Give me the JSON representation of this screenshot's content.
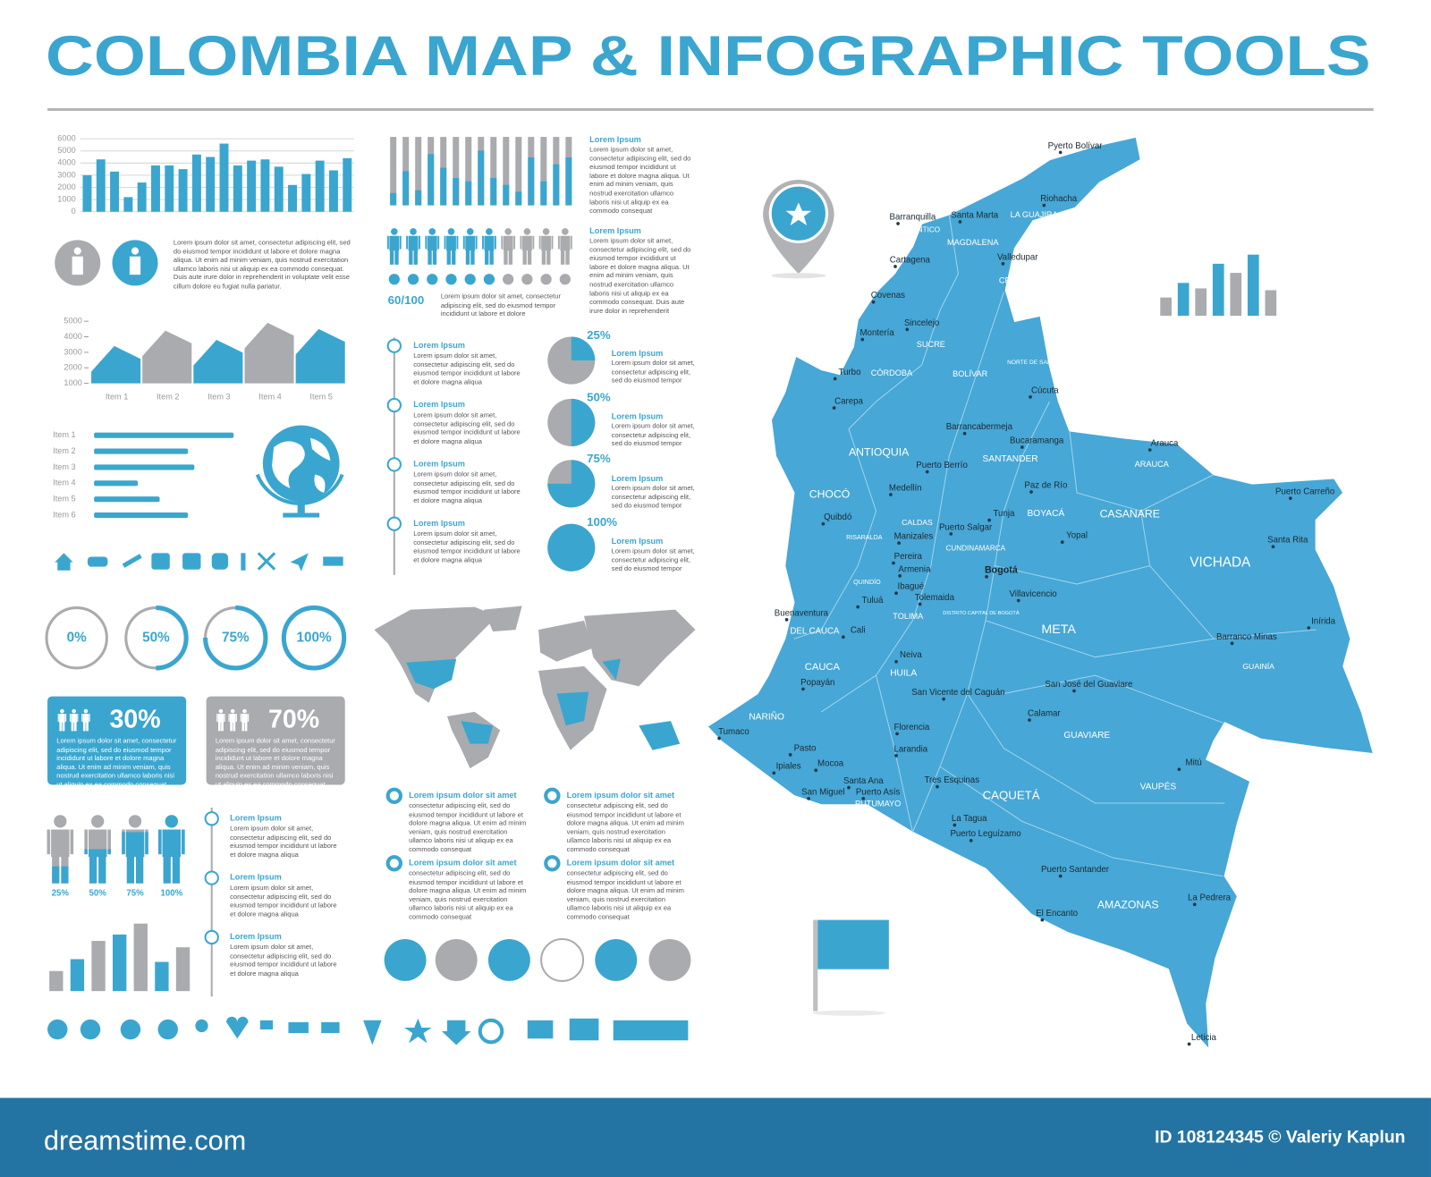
{
  "header": {
    "title": "COLOMBIA MAP & INFOGRAPHIC TOOLS"
  },
  "chart_data": [
    {
      "type": "bar",
      "ylim": [
        0,
        6000
      ],
      "yticks": [
        0,
        1000,
        2000,
        3000,
        4000,
        5000,
        6000
      ],
      "grid": true,
      "series": [
        {
          "color": "#3aa6cf",
          "values": [
            3000,
            3300,
            2400,
            3800,
            4700,
            5600,
            4200,
            3700,
            3100,
            3400
          ]
        },
        {
          "color": "#3aa6cf",
          "values": [
            4300,
            1200,
            3800,
            3500,
            4500,
            3800,
            4300,
            2200,
            4200,
            4400
          ]
        }
      ]
    },
    {
      "type": "area",
      "categories": [
        "Item 1",
        "Item 2",
        "Item 3",
        "Item 4",
        "Item 5"
      ],
      "values": [
        3400,
        4400,
        3800,
        4900,
        4500
      ],
      "colors": [
        "#3aa6cf",
        "#a9abae"
      ],
      "ylim": [
        1000,
        5000
      ],
      "yticks": [
        1000,
        2000,
        3000,
        4000,
        5000
      ]
    },
    {
      "type": "hbar",
      "categories": [
        "Item 1",
        "Item 2",
        "Item 3",
        "Item 4",
        "Item 5",
        "Item 6"
      ],
      "values": [
        153,
        103,
        110,
        48,
        72,
        103
      ],
      "color": "#3aa6cf"
    },
    {
      "type": "donut",
      "values": [
        0,
        50,
        75,
        100
      ],
      "value_labels": [
        "0%",
        "50%",
        "75%",
        "100%"
      ],
      "color": "#3aa6cf",
      "track_color": "#a9abae"
    },
    {
      "type": "pie",
      "values": [
        25,
        50,
        75,
        100
      ],
      "value_labels": [
        "25%",
        "50%",
        "75%",
        "100%"
      ],
      "color": "#3aa6cf",
      "track_color": "#a9abae"
    },
    {
      "type": "bar",
      "values": [
        18,
        50,
        22,
        75,
        55,
        40,
        35,
        80,
        40,
        30,
        20,
        70,
        35,
        60,
        70
      ],
      "colors": [
        "#3aa6cf"
      ],
      "track_color": "#a9abae"
    },
    {
      "type": "bar",
      "values": [
        22,
        35,
        55,
        62,
        74,
        32,
        48
      ],
      "colors": [
        "#a9abae",
        "#3aa6cf"
      ]
    },
    {
      "type": "bar",
      "values": [
        20,
        36,
        30,
        57,
        47,
        67,
        28
      ],
      "colors": [
        "#a9abae",
        "#3aa6cf"
      ]
    },
    {
      "type": "pictogram",
      "values": [
        25,
        50,
        75,
        100
      ],
      "value_labels": [
        "25%",
        "50%",
        "75%",
        "100%"
      ],
      "color": "#3aa6cf",
      "track_color": "#a9abae"
    },
    {
      "type": "count",
      "values": [
        60
      ],
      "total": 100,
      "value_labels": [
        "60/100"
      ],
      "color": "#3aa6cf",
      "track_color": "#a9abae"
    },
    {
      "type": "share",
      "values": [
        30,
        70
      ],
      "value_labels": [
        "30%",
        "70%"
      ],
      "colors": [
        "#3aa6cf",
        "#a9abae"
      ]
    }
  ],
  "notes": {
    "person": "Lorem ipsum dolor sit amet, consectetur adipiscing elit, sed do eiusmod tempor incididunt ut labore et dolore magna aliqua. Ut enim ad minim veniam, quis nostrud exercitation ullamco laboris nisi ut aliquip ex ea commodo consequat. Duis aute irure dolor in reprehenderit in voluptate velit esse cillum dolore eu fugiat nulla pariatur.",
    "bars": {
      "title": "Lorem Ipsum",
      "text": "Lorem ipsum dolor sit amet, consectetur adipiscing elit, sed do eiusmod tempor incididunt ut labore et dolore magna aliqua. Ut enim ad minim veniam, quis nostrud exercitation ullamco laboris nisi ut aliquip ex ea commodo consequat"
    },
    "people": {
      "title": "Lorem Ipsum",
      "text": "Lorem ipsum dolor sit amet, consectetur adipiscing elit, sed do eiusmod tempor incididunt ut labore et dolore magna aliqua. Ut enim ad minim veniam, quis nostrud exercitation ullamco laboris nisi ut aliquip ex ea commodo consequat. Duis aute irure dolor in reprehenderit"
    },
    "count": "Lorem ipsum dolor sit amet, consectetur adipiscing elit, sed do eiusmod tempor incididunt ut labore et dolore",
    "timeline_mid": [
      {
        "title": "Lorem Ipsum",
        "text": "Lorem ipsum dolor sit amet, consectetur adipiscing elit, sed do eiusmod tempor incididunt ut labore et dolore magna aliqua"
      },
      {
        "title": "Lorem Ipsum",
        "text": "Lorem ipsum dolor sit amet, consectetur adipiscing elit, sed do eiusmod tempor incididunt ut labore et dolore magna aliqua"
      },
      {
        "title": "Lorem Ipsum",
        "text": "Lorem ipsum dolor sit amet, consectetur adipiscing elit, sed do eiusmod tempor incididunt ut labore et dolore magna aliqua"
      },
      {
        "title": "Lorem Ipsum",
        "text": "Lorem ipsum dolor sit amet, consectetur adipiscing elit, sed do eiusmod tempor incididunt ut labore et dolore magna aliqua"
      }
    ],
    "pies": [
      {
        "title": "Lorem Ipsum",
        "text": "Lorem ipsum dolor sit amet, consectetur adipiscing elit, sed do eiusmod tempor"
      },
      {
        "title": "Lorem Ipsum",
        "text": "Lorem ipsum dolor sit amet, consectetur adipiscing elit, sed do eiusmod tempor"
      },
      {
        "title": "Lorem Ipsum",
        "text": "Lorem ipsum dolor sit amet, consectetur adipiscing elit, sed do eiusmod tempor"
      },
      {
        "title": "Lorem Ipsum",
        "text": "Lorem ipsum dolor sit amet, consectetur adipiscing elit, sed do eiusmod tempor"
      }
    ],
    "share": [
      "Lorem ipsum dolor sit amet, consectetur adipiscing elit, sed do eiusmod tempor incididunt ut labore et dolore magna aliqua. Ut enim ad minim veniam, quis nostrud exercitation ullamco laboris nisi ut aliquip ex ea commodo consequat",
      "Lorem ipsum dolor sit amet, consectetur adipiscing elit, sed do eiusmod tempor incididunt ut labore et dolore magna aliqua. Ut enim ad minim veniam, quis nostrud exercitation ullamco laboris nisi ut aliquip ex ea commodo consequat"
    ],
    "timeline_left": [
      {
        "title": "Lorem Ipsum",
        "text": "Lorem ipsum dolor sit amet, consectetur adipiscing elit, sed do eiusmod tempor incididunt ut labore et dolore magna aliqua"
      },
      {
        "title": "Lorem Ipsum",
        "text": "Lorem ipsum dolor sit amet, consectetur adipiscing elit, sed do eiusmod tempor incididunt ut labore et dolore magna aliqua"
      },
      {
        "title": "Lorem Ipsum",
        "text": "Lorem ipsum dolor sit amet, consectetur adipiscing elit, sed do eiusmod tempor incididunt ut labore et dolore magna aliqua"
      }
    ],
    "bullets": [
      {
        "title": "Lorem ipsum dolor sit amet",
        "text": "consectetur adipiscing elit, sed do eiusmod tempor incididunt ut labore et dolore magna aliqua. Ut enim ad minim veniam, quis nostrud exercitation ullamco laboris nisi ut aliquip ex ea commodo consequat"
      },
      {
        "title": "Lorem ipsum dolor sit amet",
        "text": "consectetur adipiscing elit, sed do eiusmod tempor incididunt ut labore et dolore magna aliqua. Ut enim ad minim veniam, quis nostrud exercitation ullamco laboris nisi ut aliquip ex ea commodo consequat"
      },
      {
        "title": "Lorem ipsum dolor sit amet",
        "text": "consectetur adipiscing elit, sed do eiusmod tempor incididunt ut labore et dolore magna aliqua. Ut enim ad minim veniam, quis nostrud exercitation ullamco laboris nisi ut aliquip ex ea commodo consequat"
      },
      {
        "title": "Lorem ipsum dolor sit amet",
        "text": "consectetur adipiscing elit, sed do eiusmod tempor incididunt ut labore et dolore magna aliqua. Ut enim ad minim veniam, quis nostrud exercitation ullamco laboris nisi ut aliquip ex ea commodo consequat"
      }
    ]
  },
  "map": {
    "regions": [
      "LA GUAJIRA",
      "ATLANTICO",
      "MAGDALENA",
      "CESAR",
      "SUCRE",
      "CÓRDOBA",
      "BOLÍVAR",
      "NORTE DE SANTANDER",
      "ANTIOQUIA",
      "SANTANDER",
      "ARAUCA",
      "CHOCÓ",
      "CASANARE",
      "BOYACÁ",
      "CALDAS",
      "RISARALDA",
      "CUNDINAMARCA",
      "VICHADA",
      "QUINDÍO",
      "TOLIMA",
      "META",
      "DISTRITO CAPITAL DE BOGOTÁ",
      "VALLE DEL CAUCA",
      "CAUCA",
      "HUILA",
      "GUAINÍA",
      "NARIÑO",
      "GUAVIARE",
      "VAUPÉS",
      "CAQUETÁ",
      "PUTUMAYO",
      "AMAZONAS"
    ],
    "cities": [
      "Pyerto Bolívar",
      "Riohacha",
      "Barranquilla",
      "Santa Marta",
      "Valledupar",
      "Cartagena",
      "Covenas",
      "Sincelejo",
      "Montería",
      "Turbo",
      "Carepa",
      "Cúcuta",
      "Barrancabermeja",
      "Bucaramanga",
      "Puerto Berrío",
      "Medellín",
      "Paz de Río",
      "Arauca",
      "Puerto Carreño",
      "Quibdó",
      "Tunja",
      "Yopal",
      "Puerto Salgar",
      "Manizales",
      "Pereira",
      "Armenia",
      "Ibagué",
      "Tolemaida",
      "Bogotá",
      "Santa Rita",
      "Villavicencio",
      "Tuluá",
      "Buenaventura",
      "Cali",
      "Inírida",
      "Barranco Minas",
      "Neiva",
      "Popayán",
      "San José del Guaviare",
      "San Vicente del Caguán",
      "Calamar",
      "Tumaco",
      "Florencia",
      "Pasto",
      "Larandia",
      "Ipiales",
      "Mocoa",
      "Mitú",
      "Santa Ana",
      "Tres Esquinas",
      "San Miguel",
      "Puerto Asís",
      "La Tagua",
      "Puerto Leguízamo",
      "Puerto Santander",
      "La Pedrera",
      "El Encanto",
      "Leticia"
    ]
  },
  "footer": {
    "brand": "dreamstime.com",
    "credit": "ID 108124345 © Valeriy Kaplun"
  }
}
